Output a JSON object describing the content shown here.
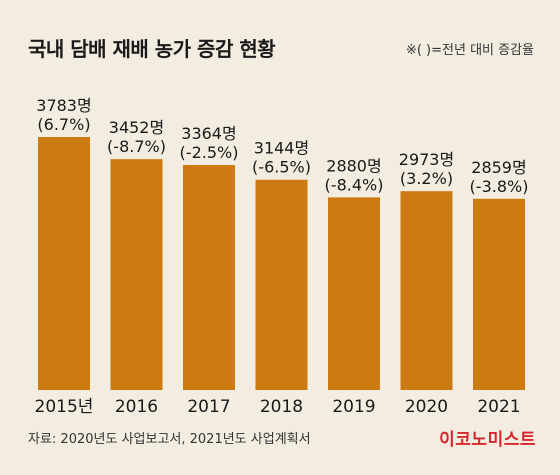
{
  "title": "국내 담배 재배 농가 증감 현황",
  "note": "※(   )=전년 대비 증감율",
  "source": "자료: 2020년도 사업보고서, 2021년도 사업계획서",
  "brand": "이코노미스트",
  "colors": {
    "bar": "#cc7a12",
    "background": "#f2ece1",
    "brand": "#d8262c"
  },
  "chart_data": {
    "type": "bar",
    "title": "국내 담배 재배 농가 증감 현황",
    "categories": [
      "2015년",
      "2016",
      "2017",
      "2018",
      "2019",
      "2020",
      "2021"
    ],
    "values": [
      3783,
      3452,
      3364,
      3144,
      2880,
      2973,
      2859
    ],
    "value_labels": [
      "3783명",
      "3452명",
      "3364명",
      "3144명",
      "2880명",
      "2973명",
      "2859명"
    ],
    "change_labels": [
      "(6.7%)",
      "(-8.7%)",
      "(-2.5%)",
      "(-6.5%)",
      "(-8.4%)",
      "(3.2%)",
      "(-3.8%)"
    ],
    "ylim": [
      0,
      4500
    ],
    "grid": false,
    "xlabel": "",
    "ylabel": ""
  }
}
